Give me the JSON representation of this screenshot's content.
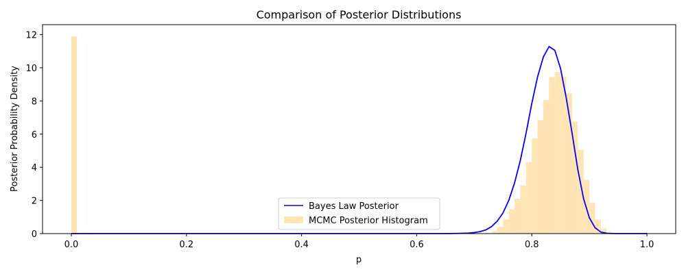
{
  "chart_data": {
    "type": "bar+line",
    "title": "Comparison of Posterior Distributions",
    "xlabel": "p",
    "ylabel": "Posterior Probability Density",
    "xlim": [
      -0.05,
      1.05
    ],
    "ylim": [
      0,
      12.6
    ],
    "x_ticks": [
      0.0,
      0.2,
      0.4,
      0.6,
      0.8,
      1.0
    ],
    "x_tick_labels": [
      "0.0",
      "0.2",
      "0.4",
      "0.6",
      "0.8",
      "1.0"
    ],
    "y_ticks": [
      0,
      2,
      4,
      6,
      8,
      10,
      12
    ],
    "y_tick_labels": [
      "0",
      "2",
      "4",
      "6",
      "8",
      "10",
      "12"
    ],
    "grid": false,
    "legend_position": "bottom-center",
    "legend": [
      "Bayes Law Posterior",
      "MCMC Posterior Histogram"
    ],
    "histogram": {
      "name": "MCMC Posterior Histogram",
      "color": "#ffe4b5",
      "bin_width": 0.01,
      "bins": [
        {
          "x0": 0.0,
          "h": 11.9
        },
        {
          "x0": 0.01,
          "h": 0.02
        },
        {
          "x0": 0.02,
          "h": 0.05
        },
        {
          "x0": 0.73,
          "h": 0.15
        },
        {
          "x0": 0.74,
          "h": 0.4
        },
        {
          "x0": 0.75,
          "h": 0.85
        },
        {
          "x0": 0.76,
          "h": 1.45
        },
        {
          "x0": 0.77,
          "h": 2.1
        },
        {
          "x0": 0.78,
          "h": 2.9
        },
        {
          "x0": 0.79,
          "h": 4.3
        },
        {
          "x0": 0.8,
          "h": 5.75
        },
        {
          "x0": 0.81,
          "h": 6.85
        },
        {
          "x0": 0.82,
          "h": 8.05
        },
        {
          "x0": 0.83,
          "h": 9.45
        },
        {
          "x0": 0.84,
          "h": 9.75
        },
        {
          "x0": 0.85,
          "h": 9.45
        },
        {
          "x0": 0.86,
          "h": 8.45
        },
        {
          "x0": 0.87,
          "h": 6.75
        },
        {
          "x0": 0.88,
          "h": 5.05
        },
        {
          "x0": 0.89,
          "h": 3.25
        },
        {
          "x0": 0.9,
          "h": 1.85
        },
        {
          "x0": 0.91,
          "h": 0.85
        },
        {
          "x0": 0.92,
          "h": 0.3
        }
      ]
    },
    "series": [
      {
        "name": "Bayes Law Posterior",
        "color": "#0000ff",
        "x": [
          0.0,
          0.1,
          0.2,
          0.3,
          0.4,
          0.5,
          0.6,
          0.65,
          0.67,
          0.69,
          0.7,
          0.71,
          0.72,
          0.73,
          0.74,
          0.75,
          0.76,
          0.77,
          0.78,
          0.79,
          0.8,
          0.81,
          0.82,
          0.83,
          0.84,
          0.85,
          0.86,
          0.87,
          0.88,
          0.89,
          0.9,
          0.91,
          0.92,
          0.93,
          0.94,
          0.95,
          0.97,
          1.0
        ],
        "y": [
          0.0,
          0.0,
          0.0,
          0.0,
          0.0,
          0.0,
          0.0,
          0.0,
          0.01,
          0.03,
          0.06,
          0.12,
          0.22,
          0.42,
          0.75,
          1.25,
          2.0,
          3.05,
          4.4,
          6.05,
          7.85,
          9.45,
          10.65,
          11.28,
          11.05,
          9.95,
          8.15,
          6.05,
          3.85,
          2.1,
          0.95,
          0.35,
          0.09,
          0.02,
          0.005,
          0.0,
          0.0,
          0.0
        ]
      }
    ]
  }
}
